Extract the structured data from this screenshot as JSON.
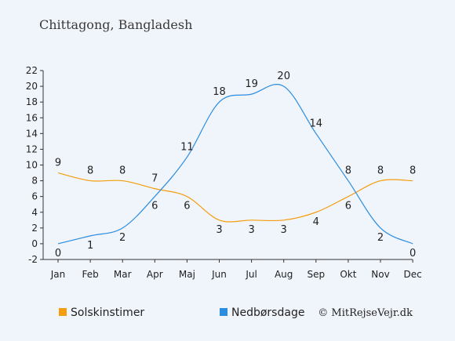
{
  "chart_data": {
    "type": "line",
    "title": "Chittagong, Bangladesh",
    "categories": [
      "Jan",
      "Feb",
      "Mar",
      "Apr",
      "Maj",
      "Jun",
      "Jul",
      "Aug",
      "Sep",
      "Okt",
      "Nov",
      "Dec"
    ],
    "y_ticks": [
      "22",
      "20",
      "18",
      "16",
      "14",
      "12",
      "10",
      "8",
      "6",
      "4",
      "2",
      "0",
      "-2"
    ],
    "ylim": [
      -2,
      22
    ],
    "grid": false,
    "legend_position": "bottom",
    "series": [
      {
        "name": "Solskinstimer",
        "color": "#f59d0c",
        "values": [
          9,
          8,
          8,
          7,
          6,
          3,
          3,
          3,
          4,
          6,
          8,
          8
        ]
      },
      {
        "name": "Nedbørsdage",
        "color": "#2a8de0",
        "values": [
          0,
          1,
          2,
          6,
          11,
          18,
          19,
          20,
          14,
          8,
          2,
          0
        ]
      }
    ],
    "credit": "© MitRejseVejr.dk"
  }
}
